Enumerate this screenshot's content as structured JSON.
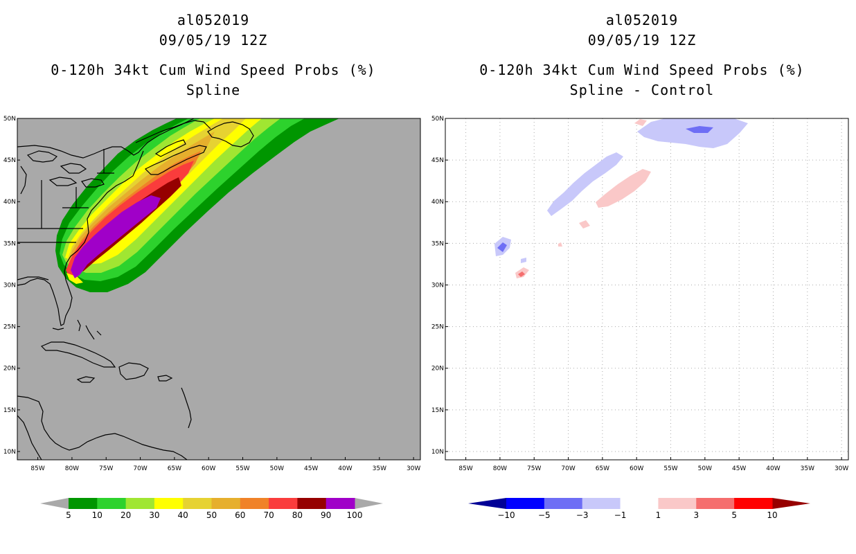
{
  "panels": [
    {
      "storm_id": "al052019",
      "datetime": "09/05/19 12Z",
      "product": "0-120h 34kt Cum Wind Speed Probs (%)",
      "subtitle": "Spline",
      "map": {
        "lon_range": [
          -88,
          -29
        ],
        "lat_range": [
          9,
          50
        ],
        "background": "#a9a9a9",
        "lat_labels": [
          "10N",
          "15N",
          "20N",
          "25N",
          "30N",
          "35N",
          "40N",
          "45N",
          "50N"
        ],
        "lon_labels": [
          "85W",
          "80W",
          "75W",
          "70W",
          "65W",
          "60W",
          "55W",
          "50W",
          "45W",
          "40W",
          "35W",
          "30W"
        ]
      },
      "colorbar": {
        "labels": [
          "5",
          "10",
          "20",
          "30",
          "40",
          "50",
          "60",
          "70",
          "80",
          "90",
          "100"
        ],
        "colors": [
          "#009600",
          "#2dd22d",
          "#a0e632",
          "#ffff00",
          "#e6d232",
          "#e6af2d",
          "#f08228",
          "#fa3c3c",
          "#960000",
          "#a000c8"
        ],
        "end_colors": [
          "#a9a9a9",
          "#a9a9a9"
        ]
      }
    },
    {
      "storm_id": "al052019",
      "datetime": "09/05/19 12Z",
      "product": "0-120h 34kt Cum Wind Speed Probs (%)",
      "subtitle": "Spline - Control",
      "map": {
        "lon_range": [
          -88,
          -29
        ],
        "lat_range": [
          9,
          50
        ],
        "background": "#ffffff",
        "lat_labels": [
          "10N",
          "15N",
          "20N",
          "25N",
          "30N",
          "35N",
          "40N",
          "45N",
          "50N"
        ],
        "lon_labels": [
          "85W",
          "80W",
          "75W",
          "70W",
          "65W",
          "60W",
          "55W",
          "50W",
          "45W",
          "40W",
          "35W",
          "30W"
        ]
      },
      "colorbar": {
        "labels": [
          "-10",
          "-5",
          "-3",
          "-1",
          "1",
          "3",
          "5",
          "10"
        ],
        "colors": [
          "#0000ff",
          "#6e6ef5",
          "#c8c8fa",
          "#ffffff",
          "#fac8c8",
          "#f56e6e",
          "#ff0000"
        ],
        "end_colors": [
          "#000096",
          "#960000"
        ]
      }
    }
  ]
}
